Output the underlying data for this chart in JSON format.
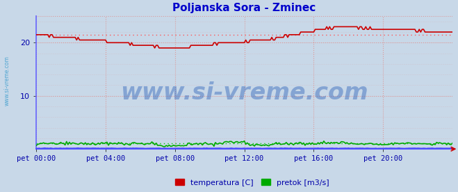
{
  "title": "Poljanska Sora - Zminec",
  "title_color": "#0000cc",
  "title_fontsize": 11,
  "bg_color": "#c8d8e8",
  "plot_bg_color": "#c8d8e8",
  "grid_color_v": "#dd9999",
  "grid_color_h": "#dd9999",
  "tick_color": "#0000aa",
  "watermark": "www.si-vreme.com",
  "watermark_color": "#3366bb",
  "watermark_alpha": 0.45,
  "watermark_fontsize": 24,
  "xlim": [
    0,
    288
  ],
  "ylim": [
    0,
    25
  ],
  "yticks": [
    10,
    20
  ],
  "xtick_labels": [
    "pet 00:00",
    "pet 04:00",
    "pet 08:00",
    "pet 12:00",
    "pet 16:00",
    "pet 20:00"
  ],
  "xtick_positions": [
    0,
    48,
    96,
    144,
    192,
    240
  ],
  "temp_color": "#cc0000",
  "temp_avg_color": "#ff5555",
  "flow_color": "#00aa00",
  "flow_avg_color": "#00cc00",
  "height_color": "#4444ff",
  "legend_labels": [
    "temperatura [C]",
    "pretok [m3/s]"
  ],
  "legend_colors": [
    "#cc0000",
    "#00aa00"
  ],
  "side_label": "www.si-vreme.com",
  "side_label_color": "#3399cc"
}
